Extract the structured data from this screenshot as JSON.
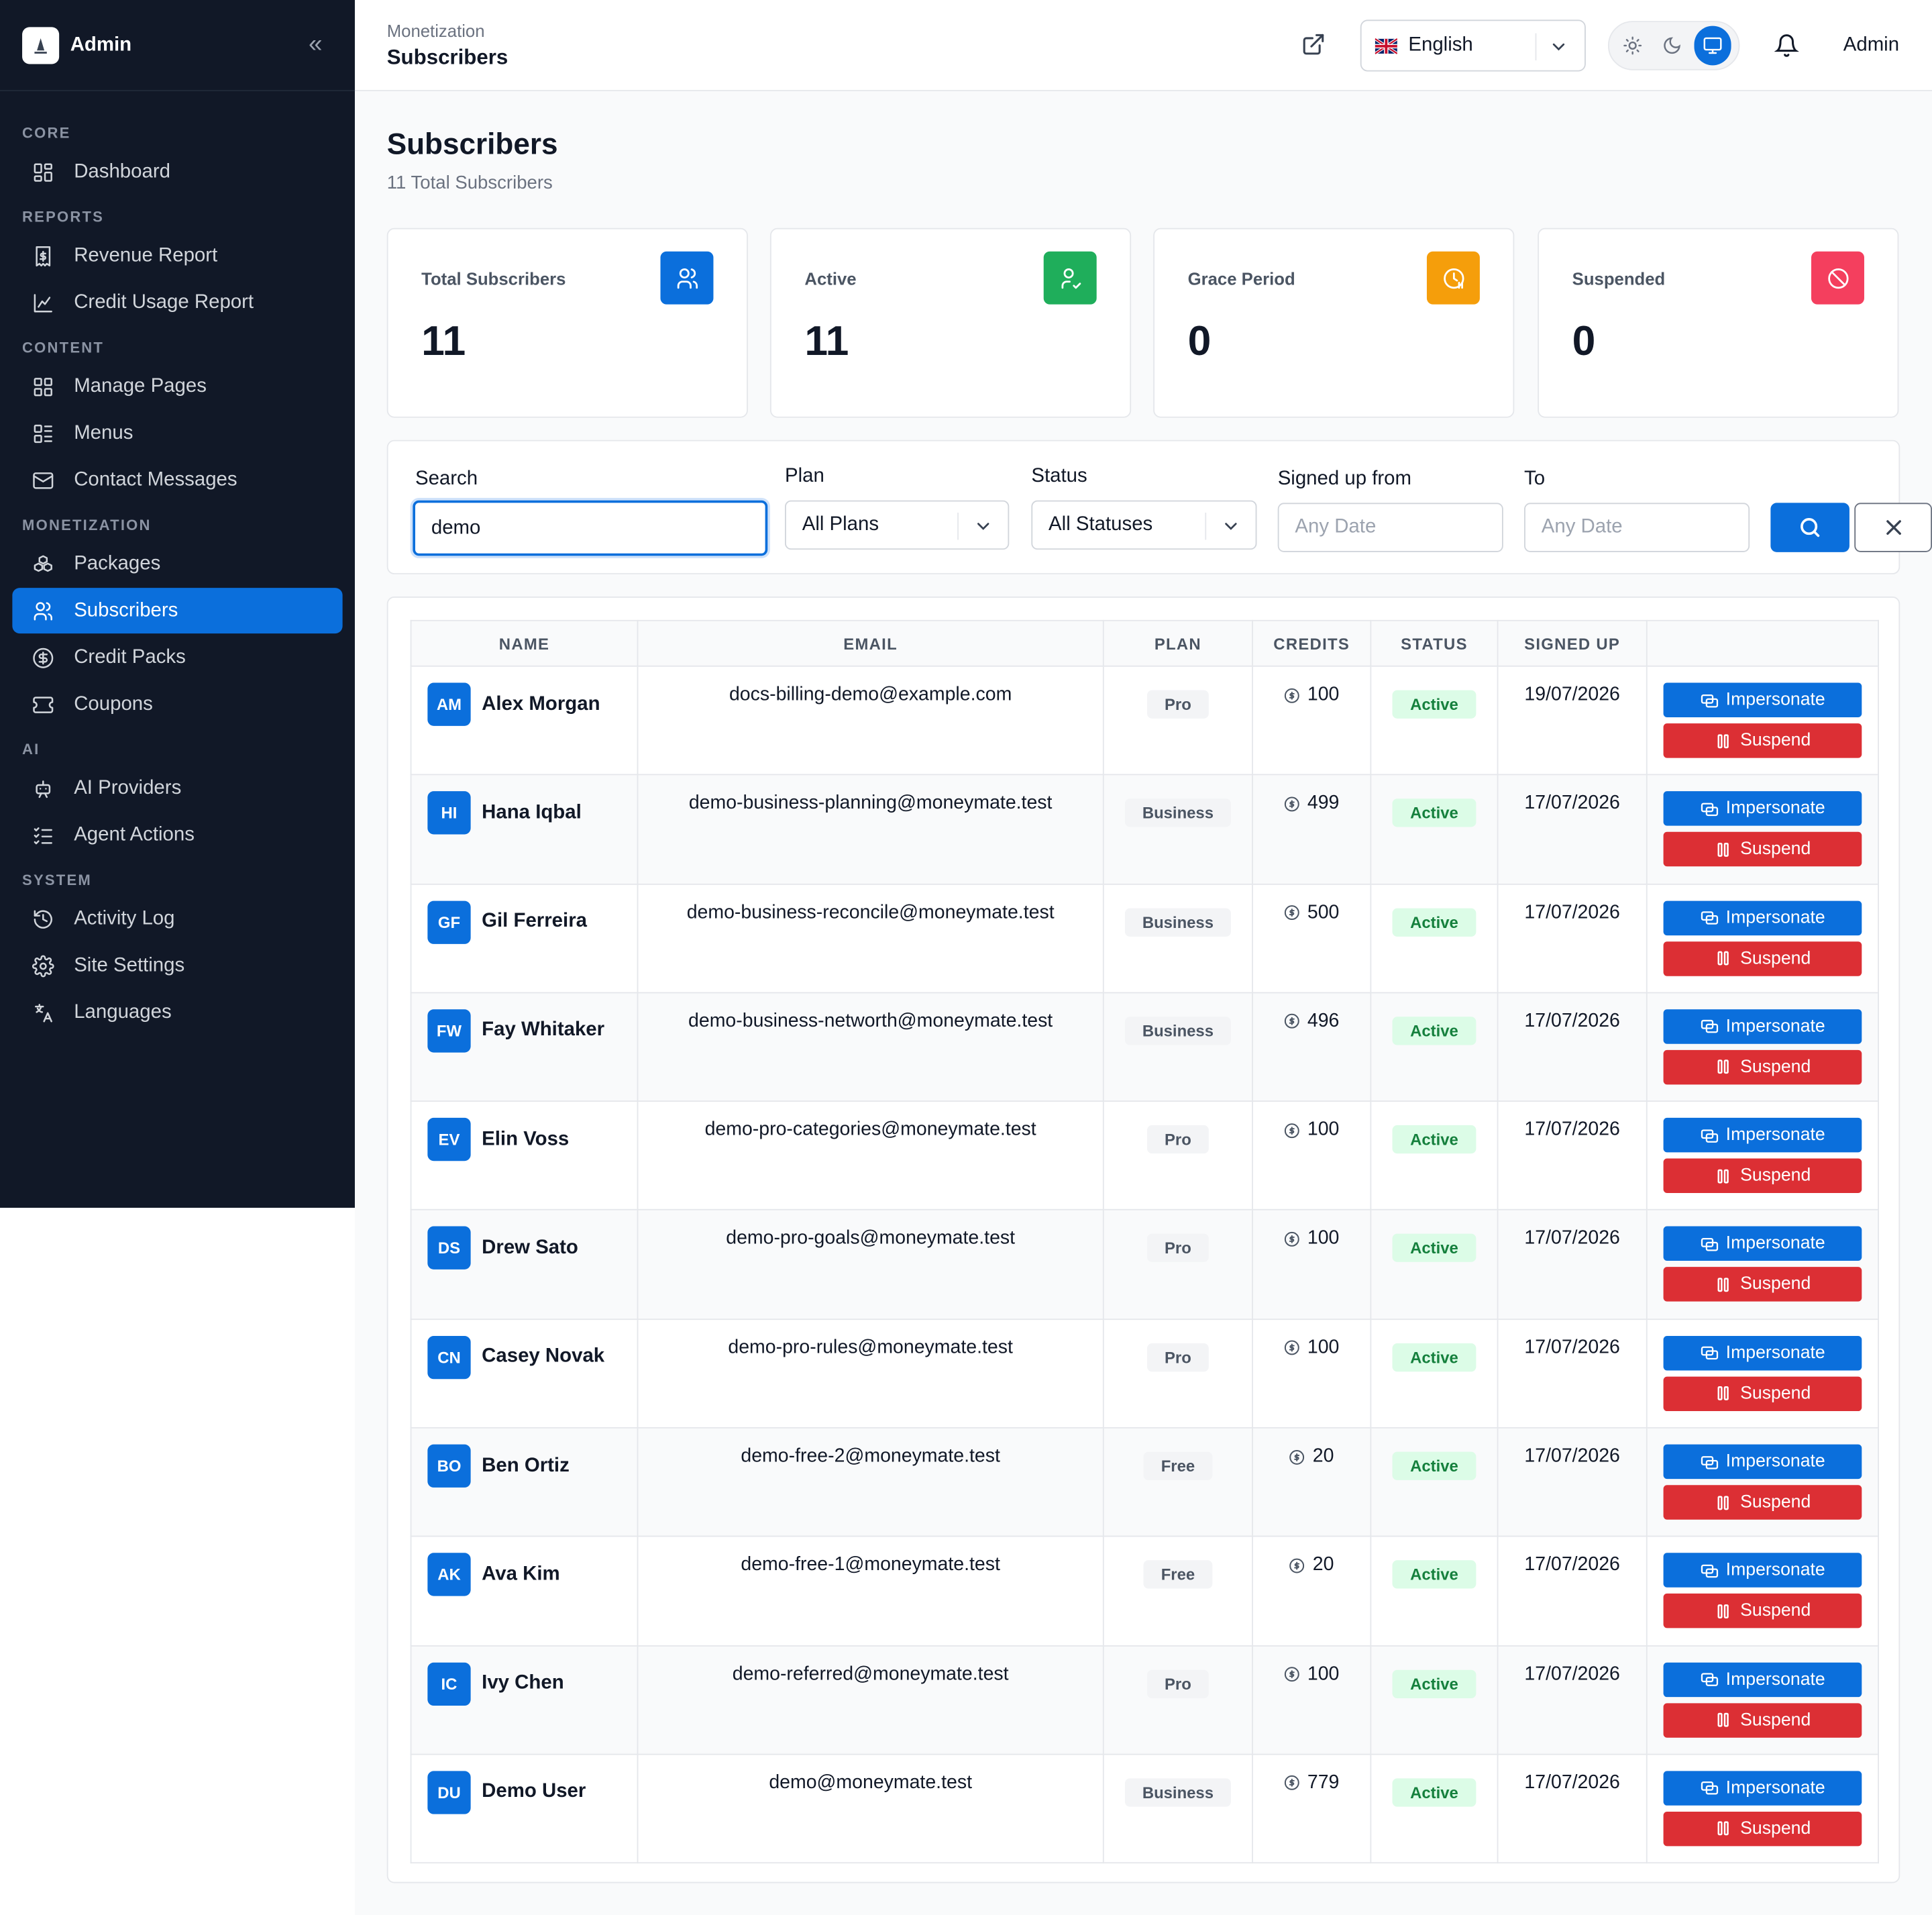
{
  "app": {
    "title": "Admin"
  },
  "sidebar": {
    "sections": [
      {
        "label": "CORE",
        "items": [
          {
            "label": "Dashboard",
            "icon": "dashboard-grid-icon"
          }
        ]
      },
      {
        "label": "REPORTS",
        "items": [
          {
            "label": "Revenue Report",
            "icon": "receipt-icon"
          },
          {
            "label": "Credit Usage Report",
            "icon": "chart-icon"
          }
        ]
      },
      {
        "label": "CONTENT",
        "items": [
          {
            "label": "Manage Pages",
            "icon": "grid-icon"
          },
          {
            "label": "Menus",
            "icon": "menu-list-icon"
          },
          {
            "label": "Contact Messages",
            "icon": "mail-icon"
          }
        ]
      },
      {
        "label": "MONETIZATION",
        "items": [
          {
            "label": "Packages",
            "icon": "packages-icon"
          },
          {
            "label": "Subscribers",
            "icon": "users-icon",
            "active": true
          },
          {
            "label": "Credit Packs",
            "icon": "dollar-circle-icon"
          },
          {
            "label": "Coupons",
            "icon": "ticket-icon"
          }
        ]
      },
      {
        "label": "AI",
        "items": [
          {
            "label": "AI Providers",
            "icon": "robot-icon"
          },
          {
            "label": "Agent Actions",
            "icon": "checklist-icon"
          }
        ]
      },
      {
        "label": "SYSTEM",
        "items": [
          {
            "label": "Activity Log",
            "icon": "history-icon"
          },
          {
            "label": "Site Settings",
            "icon": "gear-icon"
          },
          {
            "label": "Languages",
            "icon": "translate-icon"
          }
        ]
      }
    ]
  },
  "topbar": {
    "breadcrumb_parent": "Monetization",
    "breadcrumb_current": "Subscribers",
    "language": "English",
    "user": "Admin"
  },
  "page": {
    "title": "Subscribers",
    "subtitle": "11 Total Subscribers"
  },
  "stats": [
    {
      "label": "Total Subscribers",
      "value": "11",
      "color": "#0b6fdc",
      "icon": "users-icon"
    },
    {
      "label": "Active",
      "value": "11",
      "color": "#1fae5b",
      "icon": "user-check-icon"
    },
    {
      "label": "Grace Period",
      "value": "0",
      "color": "#f59e0b",
      "icon": "clock-icon"
    },
    {
      "label": "Suspended",
      "value": "0",
      "color": "#f43f5e",
      "icon": "ban-icon"
    }
  ],
  "filters": {
    "search_label": "Search",
    "search_value": "demo",
    "plan_label": "Plan",
    "plan_value": "All Plans",
    "status_label": "Status",
    "status_value": "All Statuses",
    "from_label": "Signed up from",
    "from_placeholder": "Any Date",
    "to_label": "To",
    "to_placeholder": "Any Date"
  },
  "table": {
    "columns": [
      "NAME",
      "EMAIL",
      "PLAN",
      "CREDITS",
      "STATUS",
      "SIGNED UP",
      ""
    ],
    "impersonate_label": "Impersonate",
    "suspend_label": "Suspend",
    "rows": [
      {
        "initials": "AM",
        "name": "Alex Morgan",
        "email": "docs-billing-demo@example.com",
        "plan": "Pro",
        "credits": "100",
        "status": "Active",
        "signed_up": "19/07/2026"
      },
      {
        "initials": "HI",
        "name": "Hana Iqbal",
        "email": "demo-business-planning@moneymate.test",
        "plan": "Business",
        "credits": "499",
        "status": "Active",
        "signed_up": "17/07/2026"
      },
      {
        "initials": "GF",
        "name": "Gil Ferreira",
        "email": "demo-business-reconcile@moneymate.test",
        "plan": "Business",
        "credits": "500",
        "status": "Active",
        "signed_up": "17/07/2026"
      },
      {
        "initials": "FW",
        "name": "Fay Whitaker",
        "email": "demo-business-networth@moneymate.test",
        "plan": "Business",
        "credits": "496",
        "status": "Active",
        "signed_up": "17/07/2026"
      },
      {
        "initials": "EV",
        "name": "Elin Voss",
        "email": "demo-pro-categories@moneymate.test",
        "plan": "Pro",
        "credits": "100",
        "status": "Active",
        "signed_up": "17/07/2026"
      },
      {
        "initials": "DS",
        "name": "Drew Sato",
        "email": "demo-pro-goals@moneymate.test",
        "plan": "Pro",
        "credits": "100",
        "status": "Active",
        "signed_up": "17/07/2026"
      },
      {
        "initials": "CN",
        "name": "Casey Novak",
        "email": "demo-pro-rules@moneymate.test",
        "plan": "Pro",
        "credits": "100",
        "status": "Active",
        "signed_up": "17/07/2026"
      },
      {
        "initials": "BO",
        "name": "Ben Ortiz",
        "email": "demo-free-2@moneymate.test",
        "plan": "Free",
        "credits": "20",
        "status": "Active",
        "signed_up": "17/07/2026"
      },
      {
        "initials": "AK",
        "name": "Ava Kim",
        "email": "demo-free-1@moneymate.test",
        "plan": "Free",
        "credits": "20",
        "status": "Active",
        "signed_up": "17/07/2026"
      },
      {
        "initials": "IC",
        "name": "Ivy Chen",
        "email": "demo-referred@moneymate.test",
        "plan": "Pro",
        "credits": "100",
        "status": "Active",
        "signed_up": "17/07/2026"
      },
      {
        "initials": "DU",
        "name": "Demo User",
        "email": "demo@moneymate.test",
        "plan": "Business",
        "credits": "779",
        "status": "Active",
        "signed_up": "17/07/2026"
      }
    ]
  }
}
